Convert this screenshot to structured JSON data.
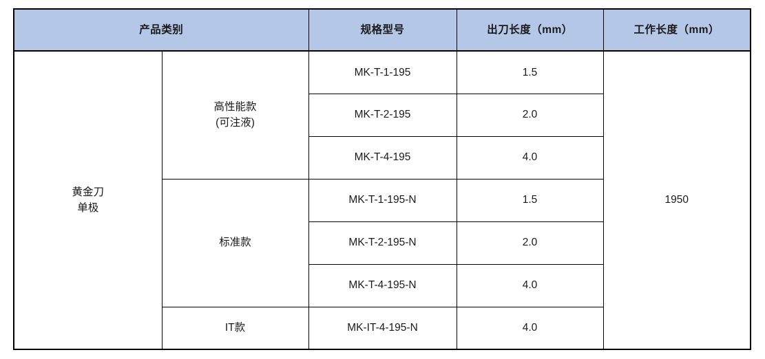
{
  "page": {
    "background": "#ffffff"
  },
  "table": {
    "accent_color": "#b4c7e7",
    "border_color": "#000000",
    "headers": [
      {
        "label": "产品类别"
      },
      {
        "label": "规格型号"
      },
      {
        "label": "出刀长度（mm）"
      },
      {
        "label": "工作长度（mm）"
      }
    ],
    "category": {
      "line1": "黄金刀",
      "line2": "单极"
    },
    "working_length": "1950",
    "groups": [
      {
        "name_lines": [
          "高性能款",
          "(可注液)"
        ],
        "rows": [
          {
            "model": "MK-T-1-195",
            "blade_length": "1.5"
          },
          {
            "model": "MK-T-2-195",
            "blade_length": "2.0"
          },
          {
            "model": "MK-T-4-195",
            "blade_length": "4.0"
          }
        ]
      },
      {
        "name_lines": [
          "标准款"
        ],
        "rows": [
          {
            "model": "MK-T-1-195-N",
            "blade_length": "1.5"
          },
          {
            "model": "MK-T-2-195-N",
            "blade_length": "2.0"
          },
          {
            "model": "MK-T-4-195-N",
            "blade_length": "4.0"
          }
        ]
      },
      {
        "name_lines": [
          "IT款"
        ],
        "rows": [
          {
            "model": "MK-IT-4-195-N",
            "blade_length": "4.0"
          }
        ]
      }
    ]
  }
}
